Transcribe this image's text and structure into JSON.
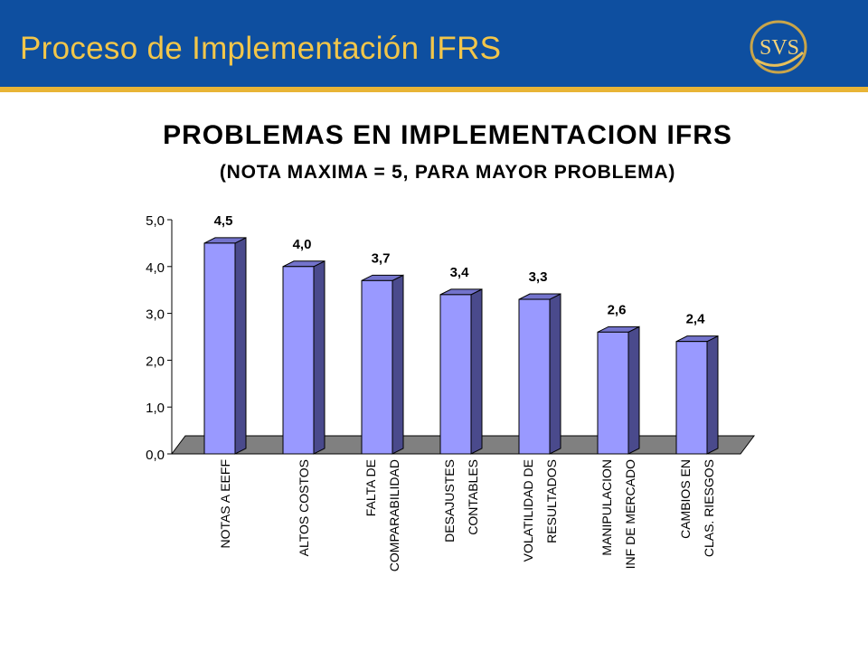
{
  "slide": {
    "title": "Proceso de Implementación IFRS",
    "logo_text": "SVS"
  },
  "colors": {
    "header": "#0e4fa0",
    "stripe": "#e8b436",
    "title": "#f2c64a",
    "bar_front": "#9999ff",
    "bar_side": "#4a4a8c",
    "bar_top": "#7373cc",
    "floor": "#808080"
  },
  "chart_data": {
    "type": "bar",
    "title": "PROBLEMAS EN IMPLEMENTACION IFRS",
    "subtitle": "(NOTA MAXIMA = 5, PARA MAYOR PROBLEMA)",
    "categories": [
      [
        "NOTAS A EEFF"
      ],
      [
        "ALTOS COSTOS"
      ],
      [
        "FALTA DE",
        "COMPARABILIDAD"
      ],
      [
        "DESAJUSTES",
        "CONTABLES"
      ],
      [
        "VOLATILIDAD DE",
        "RESULTADOS"
      ],
      [
        "MANIPULACION",
        "INF DE MERCADO"
      ],
      [
        "CAMBIOS EN",
        "CLAS. RIESGOS"
      ]
    ],
    "values": [
      4.5,
      4.0,
      3.7,
      3.4,
      3.3,
      2.6,
      2.4
    ],
    "value_labels": [
      "4,5",
      "4,0",
      "3,7",
      "3,4",
      "3,3",
      "2,6",
      "2,4"
    ],
    "ylim": [
      0,
      5
    ],
    "yticks": [
      "0,0",
      "1,0",
      "2,0",
      "3,0",
      "4,0",
      "5,0"
    ],
    "grid": false,
    "style": "3d"
  }
}
